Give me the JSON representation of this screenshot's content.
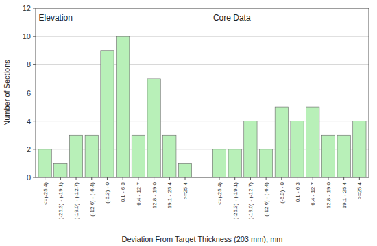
{
  "chart_data": {
    "type": "bar",
    "xlabel": "Deviation From Target Thickness (203 mm), mm",
    "ylabel": "Number of Sections",
    "color": "#b8f0b8",
    "ylim": [
      0,
      12
    ],
    "yticks": [
      0,
      2,
      4,
      6,
      8,
      10,
      12
    ],
    "grid": true,
    "groups": [
      {
        "label": "Elevation",
        "categories": [
          "<=(-25.4)",
          "(-25.3) - (-19.1)",
          "(-19.0) - (-12.7)",
          "(-12.6) - (-6.4)",
          "(-6.3) - 0",
          "0.1 - 6.3",
          "6.4 - 12.7",
          "12.8 - 19.0",
          "19.1 - 25.4",
          ">=25.4"
        ],
        "values": [
          2,
          1,
          3,
          3,
          9,
          10,
          3,
          7,
          3,
          1
        ]
      },
      {
        "label": "Core Data",
        "categories": [
          "<=(-25.4)",
          "(-25.3) - (-19.1)",
          "(-19.0) - (-12.7)",
          "(-12.6) - (-6.4)",
          "(-6.3) - 0",
          "0.1 - 6.3",
          "6.4 - 12.7",
          "12.8 - 19.0",
          "19.1 - 25.4",
          ">=25.4"
        ],
        "values": [
          2,
          2,
          4,
          2,
          5,
          4,
          5,
          3,
          3,
          4
        ]
      }
    ]
  }
}
